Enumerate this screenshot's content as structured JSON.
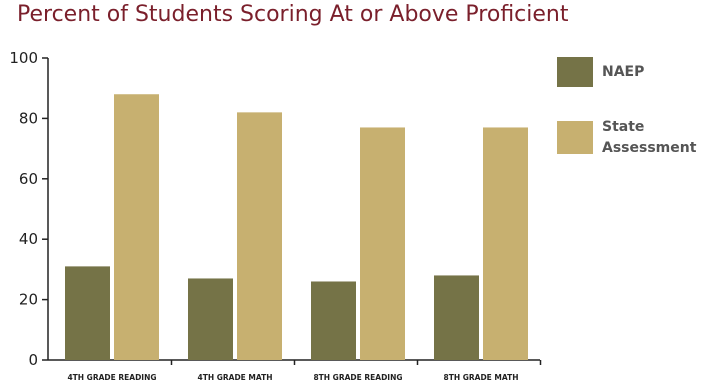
{
  "chart_data": {
    "type": "bar",
    "title": "Percent of Students Scoring At or Above Proficient",
    "categories": [
      "4TH GRADE READING",
      "4TH GRADE MATH",
      "8TH GRADE READING",
      "8TH GRADE MATH"
    ],
    "series": [
      {
        "name": "NAEP",
        "values": [
          31,
          27,
          26,
          28
        ],
        "color": "#757347"
      },
      {
        "name": "State Assessment",
        "values": [
          88,
          82,
          77,
          77
        ],
        "color": "#c7b070"
      }
    ],
    "yticks": [
      0,
      20,
      40,
      60,
      80,
      100
    ],
    "ylim": [
      0,
      100
    ],
    "grid": false,
    "legend_position": "right",
    "legend": [
      "NAEP",
      "State",
      "Assessment"
    ]
  }
}
